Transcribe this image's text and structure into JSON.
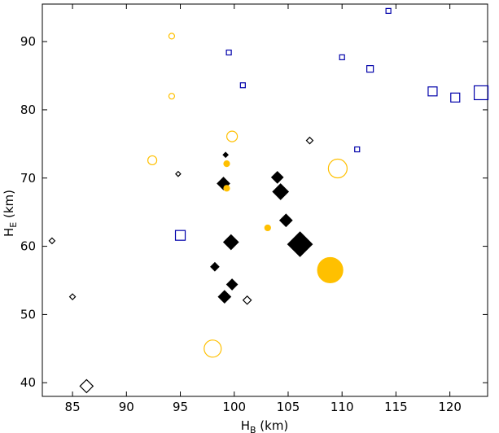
{
  "chart_data": {
    "type": "scatter",
    "xlabel": {
      "main": "H",
      "sub": "B",
      "unit": " (km)"
    },
    "ylabel": {
      "main": "H",
      "sub": "E",
      "unit": " (km)"
    },
    "xlim": [
      82.2,
      123.5
    ],
    "ylim": [
      38.0,
      95.5
    ],
    "xticks": [
      85,
      90,
      95,
      100,
      105,
      110,
      115,
      120
    ],
    "yticks": [
      40,
      50,
      60,
      70,
      80,
      90
    ],
    "grid": false,
    "colors": {
      "diamond": "#000000",
      "circle": "#ffc000",
      "square": "#0000aa"
    },
    "series": [
      {
        "marker": "diamond",
        "points": [
          {
            "x": 83.1,
            "y": 60.8,
            "size": 3.5,
            "filled": false
          },
          {
            "x": 85.0,
            "y": 52.6,
            "size": 3.5,
            "filled": false
          },
          {
            "x": 86.3,
            "y": 39.5,
            "size": 8,
            "filled": false
          },
          {
            "x": 94.8,
            "y": 70.6,
            "size": 3,
            "filled": false
          },
          {
            "x": 99.2,
            "y": 73.4,
            "size": 3,
            "filled": true
          },
          {
            "x": 99.0,
            "y": 69.2,
            "size": 7.5,
            "filled": true
          },
          {
            "x": 99.7,
            "y": 60.6,
            "size": 9,
            "filled": true
          },
          {
            "x": 98.2,
            "y": 57.0,
            "size": 5,
            "filled": true
          },
          {
            "x": 99.8,
            "y": 54.4,
            "size": 6.5,
            "filled": true
          },
          {
            "x": 99.1,
            "y": 52.6,
            "size": 7.5,
            "filled": true
          },
          {
            "x": 101.2,
            "y": 52.1,
            "size": 5,
            "filled": false
          },
          {
            "x": 104.0,
            "y": 70.1,
            "size": 7,
            "filled": true
          },
          {
            "x": 104.3,
            "y": 68.0,
            "size": 9.5,
            "filled": true
          },
          {
            "x": 104.8,
            "y": 63.8,
            "size": 7.5,
            "filled": true
          },
          {
            "x": 106.1,
            "y": 60.3,
            "size": 15,
            "filled": true
          },
          {
            "x": 107.0,
            "y": 75.5,
            "size": 4,
            "filled": false
          }
        ]
      },
      {
        "marker": "circle",
        "points": [
          {
            "x": 94.2,
            "y": 90.8,
            "size": 3.5,
            "filled": false
          },
          {
            "x": 94.2,
            "y": 82.0,
            "size": 3.5,
            "filled": false
          },
          {
            "x": 92.4,
            "y": 72.6,
            "size": 5.5,
            "filled": false
          },
          {
            "x": 99.8,
            "y": 76.1,
            "size": 6.5,
            "filled": false
          },
          {
            "x": 99.3,
            "y": 72.1,
            "size": 3.5,
            "filled": true
          },
          {
            "x": 99.3,
            "y": 68.5,
            "size": 3.5,
            "filled": true
          },
          {
            "x": 103.1,
            "y": 62.7,
            "size": 3.5,
            "filled": true
          },
          {
            "x": 98.0,
            "y": 45.0,
            "size": 10.5,
            "filled": false
          },
          {
            "x": 109.6,
            "y": 71.4,
            "size": 11.5,
            "filled": false
          },
          {
            "x": 108.9,
            "y": 56.5,
            "size": 15.5,
            "filled": true
          }
        ]
      },
      {
        "marker": "square",
        "points": [
          {
            "x": 95.0,
            "y": 61.6,
            "size": 6,
            "filled": false
          },
          {
            "x": 99.5,
            "y": 88.4,
            "size": 3,
            "filled": false
          },
          {
            "x": 100.8,
            "y": 83.6,
            "size": 3,
            "filled": false
          },
          {
            "x": 110.0,
            "y": 87.7,
            "size": 3,
            "filled": false
          },
          {
            "x": 111.4,
            "y": 74.2,
            "size": 3,
            "filled": false
          },
          {
            "x": 112.6,
            "y": 86.0,
            "size": 4,
            "filled": false
          },
          {
            "x": 114.3,
            "y": 94.5,
            "size": 3,
            "filled": false
          },
          {
            "x": 118.4,
            "y": 82.7,
            "size": 5.5,
            "filled": false
          },
          {
            "x": 120.5,
            "y": 81.8,
            "size": 5.5,
            "filled": false
          },
          {
            "x": 122.9,
            "y": 82.5,
            "size": 8.5,
            "filled": false
          }
        ]
      }
    ]
  }
}
